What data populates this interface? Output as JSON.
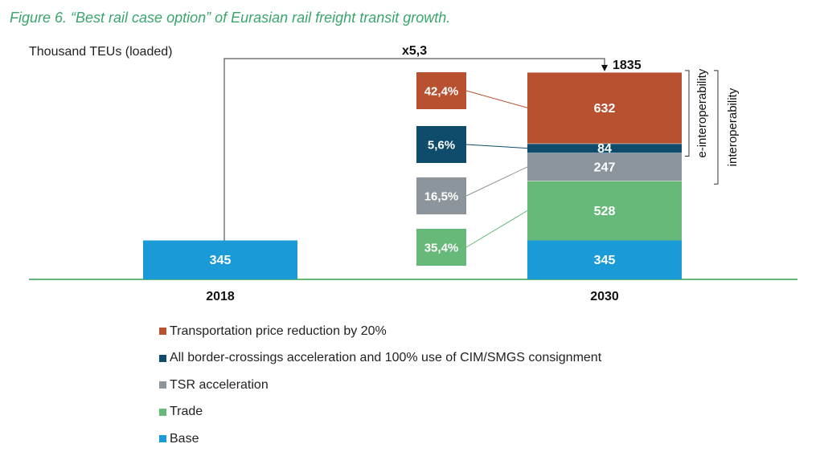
{
  "figure_title": "Figure 6. “Best rail case option” of Eurasian rail freight transit growth.",
  "chart_data": {
    "type": "bar",
    "stacked": true,
    "ylabel": "Thousand TEUs (loaded)",
    "categories": [
      "2018",
      "2030"
    ],
    "series": [
      {
        "name": "Base",
        "color": "#1a9ad6",
        "values": [
          345,
          345
        ]
      },
      {
        "name": "Trade",
        "color": "#67b97a",
        "values": [
          0,
          528
        ]
      },
      {
        "name": "TSR acceleration",
        "color": "#8c959b",
        "values": [
          0,
          247
        ]
      },
      {
        "name": "All border-crossings acceleration and 100% use of CIM/SMGS consignment",
        "color": "#0f4c6b",
        "values": [
          0,
          84
        ]
      },
      {
        "name": "Transportation price reduction by 20%",
        "color": "#b85130",
        "values": [
          0,
          632
        ]
      }
    ],
    "total_label": "1835",
    "growth_label": "x5,3",
    "shares": [
      {
        "series": "Transportation price reduction by 20%",
        "label": "42,4%"
      },
      {
        "series": "All border-crossings acceleration and 100% use of CIM/SMGS consignment",
        "label": "5,6%"
      },
      {
        "series": "TSR acceleration",
        "label": "16,5%"
      },
      {
        "series": "Trade",
        "label": "35,4%"
      }
    ],
    "brackets": [
      {
        "label": "e-interoperability",
        "spans": [
          "Transportation price reduction by 20%",
          "All border-crossings acceleration and 100% use of CIM/SMGS consignment"
        ]
      },
      {
        "label": "interoperability",
        "spans": [
          "Transportation price reduction by 20%",
          "All border-crossings acceleration and 100% use of CIM/SMGS consignment",
          "TSR acceleration"
        ]
      }
    ],
    "legend_order": [
      "Transportation price reduction by 20%",
      "All border-crossings acceleration and 100% use of CIM/SMGS consignment",
      "TSR acceleration",
      "Trade",
      "Base"
    ],
    "legend_position": "bottom"
  }
}
